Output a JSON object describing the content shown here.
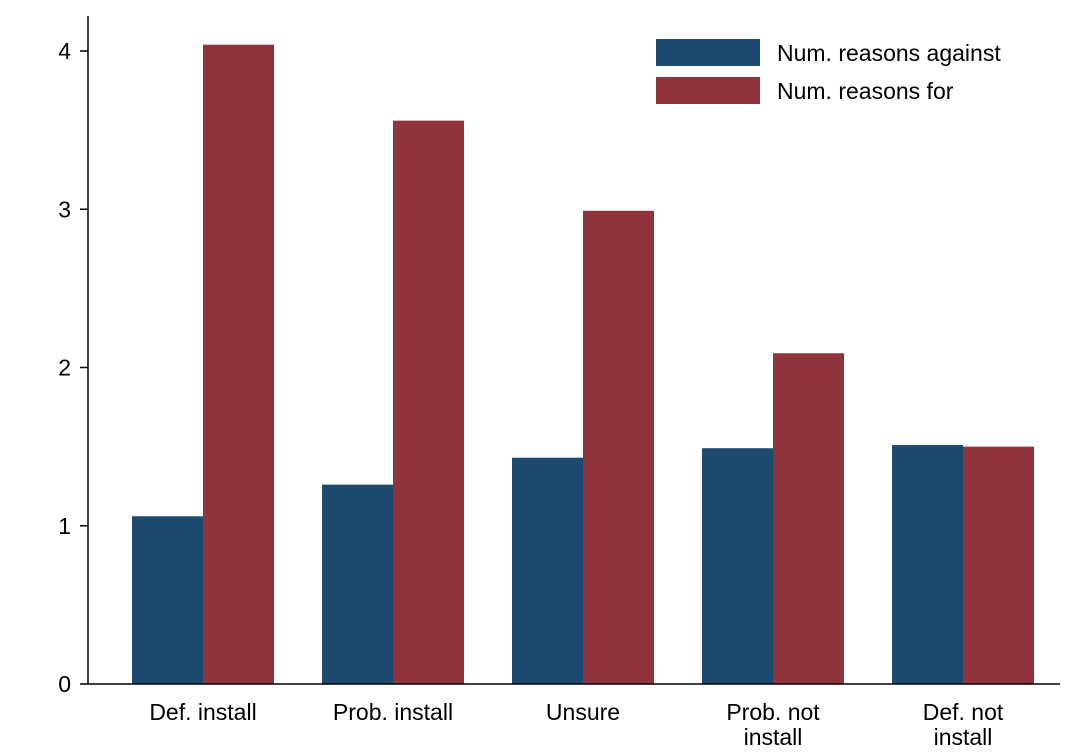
{
  "chart_data": {
    "type": "bar",
    "title": "",
    "xlabel": "",
    "ylabel": "",
    "categories": [
      [
        "Def. install"
      ],
      [
        "Prob. install"
      ],
      [
        "Unsure"
      ],
      [
        "Prob. not",
        "install"
      ],
      [
        "Def. not",
        "install"
      ]
    ],
    "series": [
      {
        "name": "Num. reasons against",
        "color": "#1f4a70",
        "values": [
          1.06,
          1.26,
          1.43,
          1.49,
          1.51
        ]
      },
      {
        "name": "Num. reasons for",
        "color": "#8f343d",
        "values": [
          4.04,
          3.56,
          2.99,
          2.09,
          1.5
        ]
      }
    ],
    "ylim": [
      0,
      4.2
    ],
    "yticks": [
      0,
      1,
      2,
      3,
      4
    ],
    "grid": false,
    "legend_position": "top-right"
  }
}
